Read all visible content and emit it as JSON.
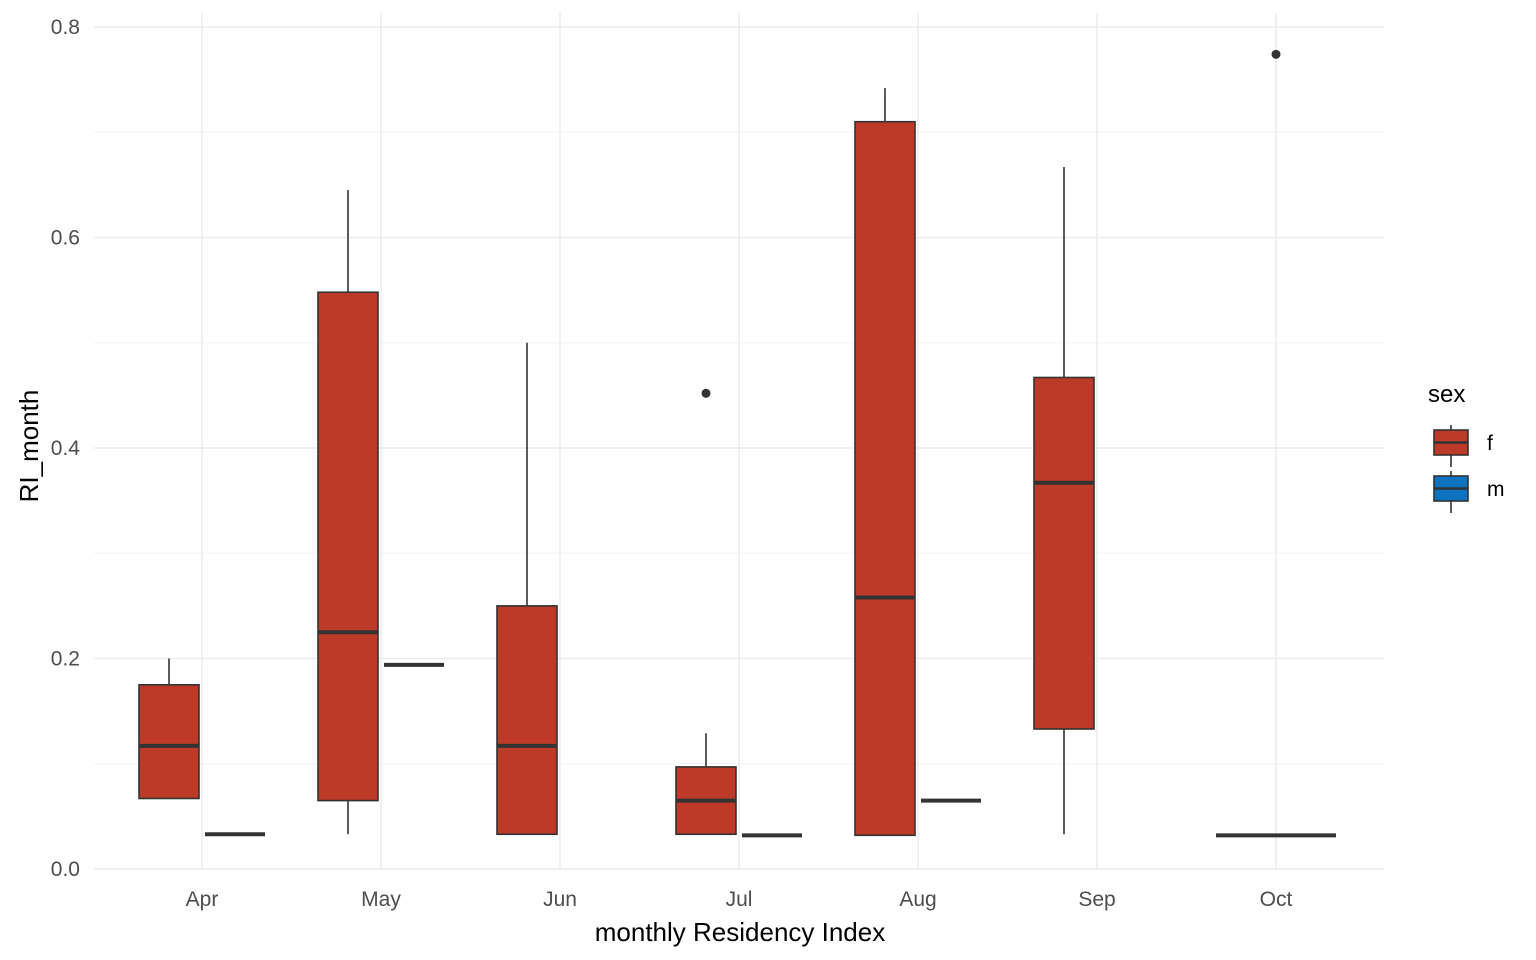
{
  "chart_data": {
    "type": "boxplot",
    "xlabel": "monthly Residency Index",
    "ylabel": "RI_month",
    "categories": [
      "Apr",
      "May",
      "Jun",
      "Jul",
      "Aug",
      "Sep",
      "Oct"
    ],
    "ylim": [
      0,
      0.8
    ],
    "yticks": [
      0.0,
      0.2,
      0.4,
      0.6,
      0.8
    ],
    "ytick_labels": [
      "0.0",
      "0.2",
      "0.4",
      "0.6",
      "0.8"
    ],
    "grid": true,
    "legend": {
      "title": "sex",
      "position": "right",
      "entries": [
        {
          "label": "f",
          "color": "#bd3a29"
        },
        {
          "label": "m",
          "color": "#0d72bf"
        }
      ]
    },
    "series": [
      {
        "name": "f",
        "color": "#bd3a29",
        "boxes": [
          {
            "category": "Apr",
            "min": 0.067,
            "q1": 0.067,
            "median": 0.117,
            "q3": 0.175,
            "max": 0.2,
            "outliers": []
          },
          {
            "category": "May",
            "min": 0.033,
            "q1": 0.065,
            "median": 0.225,
            "q3": 0.548,
            "max": 0.645,
            "outliers": []
          },
          {
            "category": "Jun",
            "min": 0.033,
            "q1": 0.033,
            "median": 0.117,
            "q3": 0.25,
            "max": 0.5,
            "outliers": []
          },
          {
            "category": "Jul",
            "min": 0.033,
            "q1": 0.033,
            "median": 0.065,
            "q3": 0.097,
            "max": 0.129,
            "outliers": [
              0.452
            ]
          },
          {
            "category": "Aug",
            "min": 0.032,
            "q1": 0.032,
            "median": 0.258,
            "q3": 0.71,
            "max": 0.742,
            "outliers": []
          },
          {
            "category": "Sep",
            "min": 0.033,
            "q1": 0.133,
            "median": 0.367,
            "q3": 0.467,
            "max": 0.667,
            "outliers": []
          },
          {
            "category": "Oct",
            "min": 0.774,
            "q1": 0.774,
            "median": 0.774,
            "q3": 0.774,
            "max": 0.774,
            "outliers": [],
            "hidden_box": true,
            "point_only": true
          }
        ]
      },
      {
        "name": "m",
        "color": "#0d72bf",
        "boxes": [
          {
            "category": "Apr",
            "min": 0.033,
            "q1": 0.033,
            "median": 0.033,
            "q3": 0.033,
            "max": 0.033,
            "outliers": []
          },
          {
            "category": "May",
            "min": 0.194,
            "q1": 0.194,
            "median": 0.194,
            "q3": 0.194,
            "max": 0.194,
            "outliers": []
          },
          {
            "category": "Jul",
            "min": 0.032,
            "q1": 0.032,
            "median": 0.032,
            "q3": 0.032,
            "max": 0.032,
            "outliers": []
          },
          {
            "category": "Aug",
            "min": 0.065,
            "q1": 0.065,
            "median": 0.065,
            "q3": 0.065,
            "max": 0.065,
            "outliers": []
          },
          {
            "category": "Oct",
            "min": 0.032,
            "q1": 0.032,
            "median": 0.032,
            "q3": 0.032,
            "max": 0.032,
            "outliers": [],
            "span_full": true
          }
        ]
      }
    ]
  }
}
